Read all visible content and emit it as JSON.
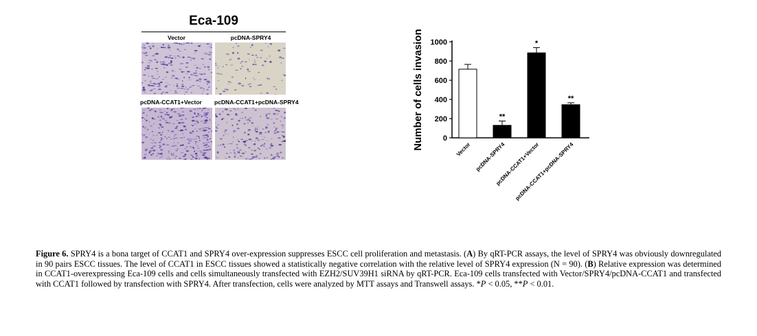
{
  "figure": {
    "panel_title": "Eca-109",
    "column_labels": [
      "Vector",
      "pcDNA-SPRY4"
    ],
    "row2_labels": [
      "pcDNA-CCAT1+Vector",
      "pcDNA-CCAT1+pcDNA-SPRY4"
    ]
  },
  "chart_data": {
    "type": "bar",
    "categories": [
      "Vector",
      "pcDNA-SPRY4",
      "pcDNA-CCAT1+Vector",
      "pcDNA-CCAT1+pcDNA-SPRY4"
    ],
    "values": [
      715,
      130,
      885,
      345
    ],
    "errors": [
      50,
      45,
      55,
      20
    ],
    "significance": [
      "",
      "**",
      "*",
      "**"
    ],
    "bar_colors": [
      "#ffffff",
      "#000000",
      "#000000",
      "#000000"
    ],
    "ylabel": "Number of cells invasion",
    "ylim": [
      0,
      1000
    ],
    "yticks": [
      0,
      200,
      400,
      600,
      800,
      1000
    ]
  },
  "caption": {
    "lead": "Figure 6.",
    "text_1": " SPRY4 is a bona target of CCAT1 and SPRY4 over-expression suppresses ESCC cell proliferation and metastasis. (",
    "A": "A",
    "text_2": ") By qRT-PCR assays, the level of SPRY4 was obviously downregulated in 90 pairs ESCC tissues. The level of CCAT1 in ESCC tissues showed a statistically negative correlation with the relative level of SPRY4 expression (N = 90). (",
    "B": "B",
    "text_3": ") Relative expression was determined in CCAT1-overexpressing Eca-109 cells and cells simultaneously transfected with EZH2/SUV39H1 siRNA by qRT-PCR. Eca-109 cells transfected with Vector/SPRY4/pcDNA-CCAT1 and transfected with CCAT1 followed by transfection with SPRY4. After transfection, cells were analyzed by MTT assays and Transwell assays. *",
    "p1": "P",
    "text_4": " < 0.05, **",
    "p2": "P",
    "text_5": " < 0.01."
  }
}
